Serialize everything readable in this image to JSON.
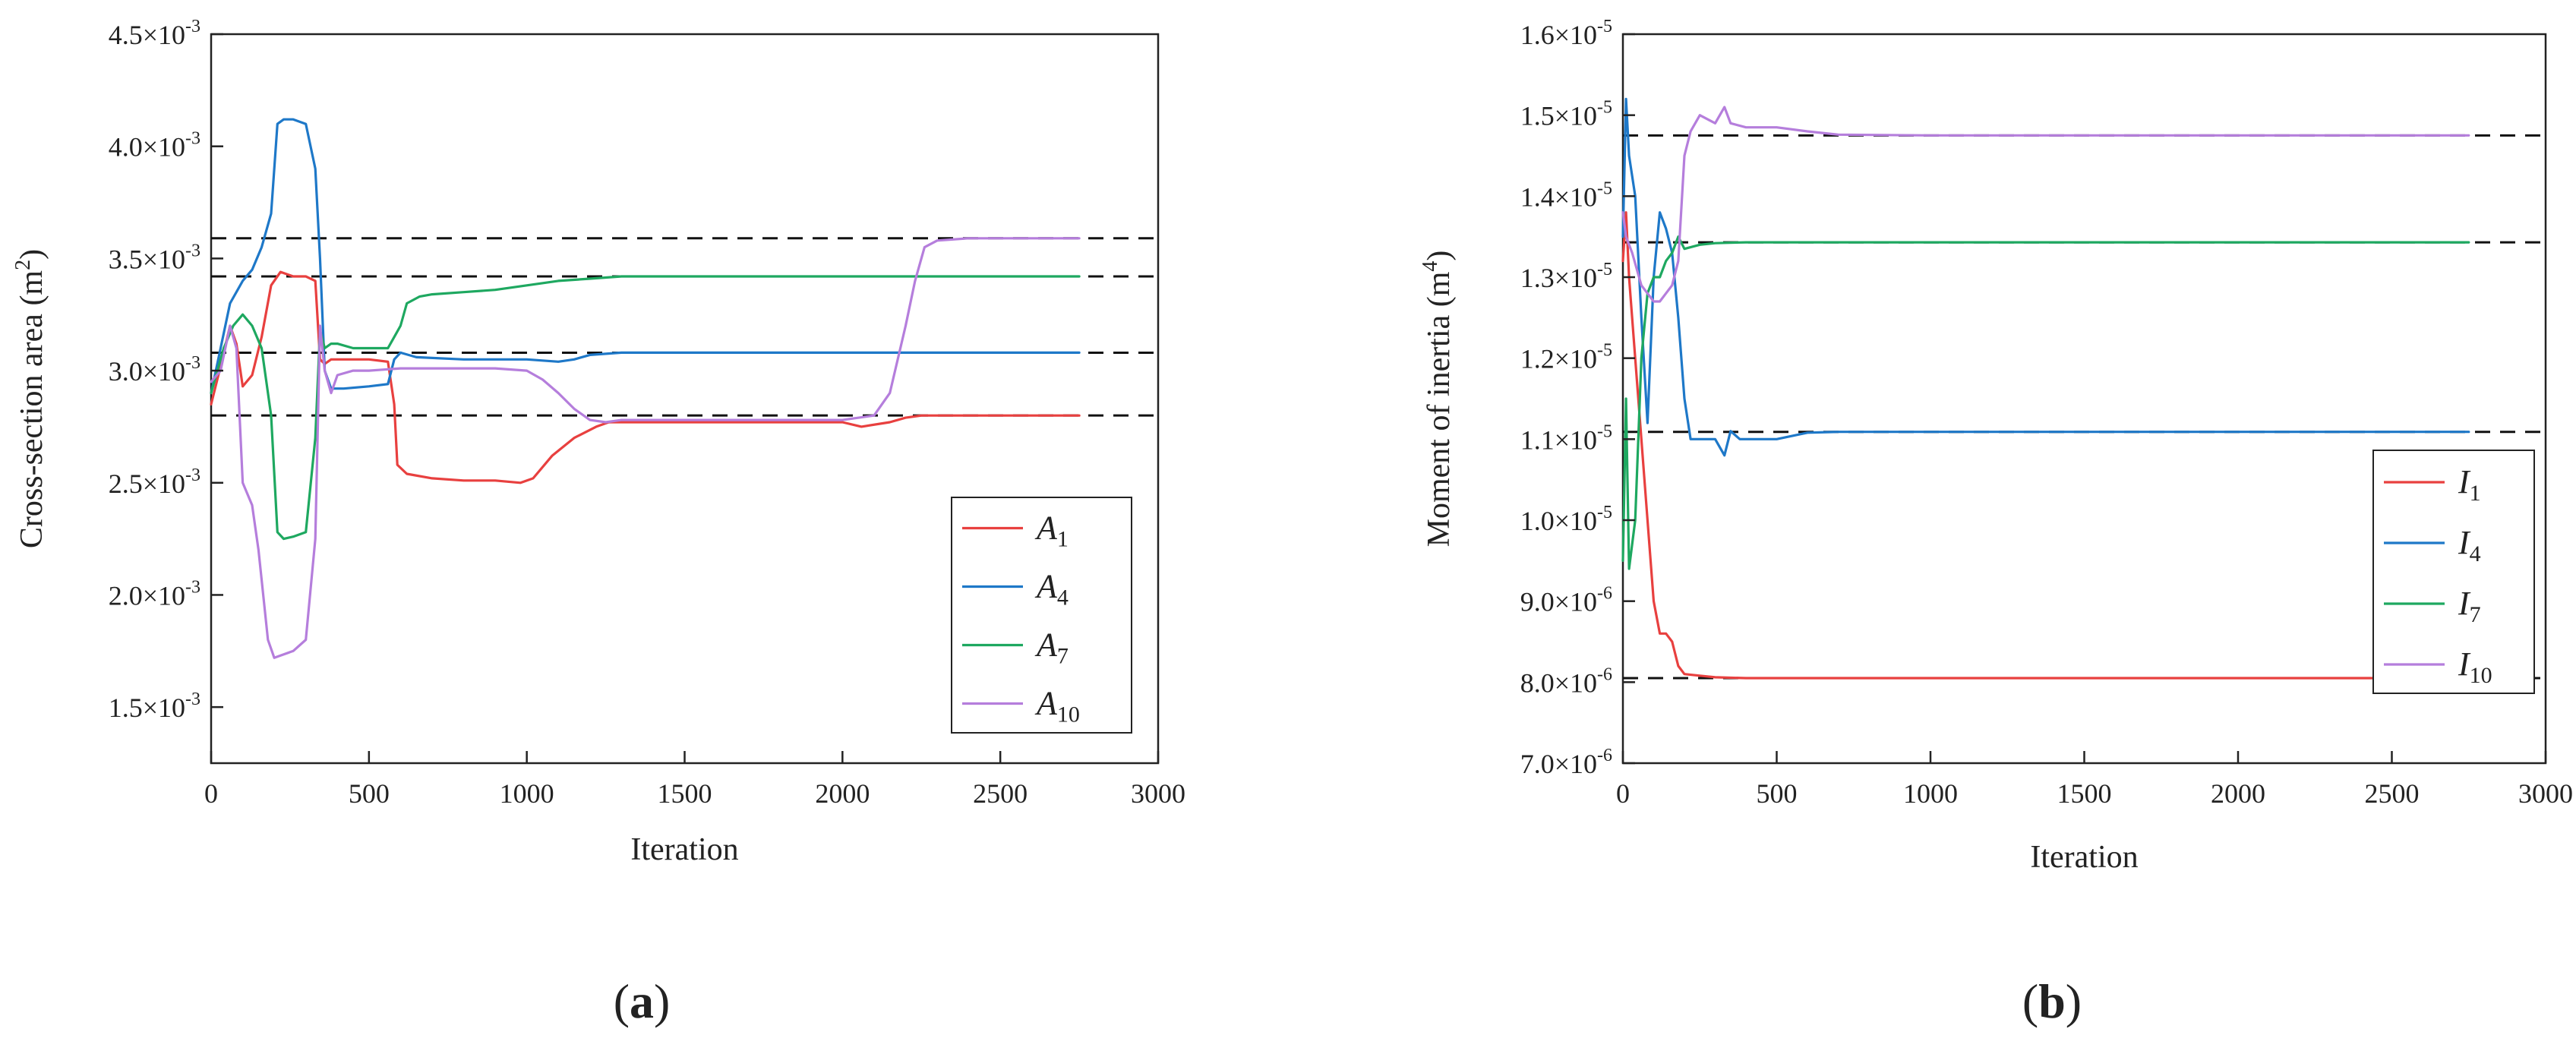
{
  "chart_data": [
    {
      "type": "line",
      "panel_label": "(a)",
      "panel_letter": "a",
      "xlabel": "Iteration",
      "ylabel": "Cross-section area (m",
      "ylabel_exp": "2",
      "xlim": [
        0,
        3000
      ],
      "ylim": [
        0.00125,
        0.0045
      ],
      "x_ticks": [
        0,
        500,
        1000,
        1500,
        2000,
        2500,
        3000
      ],
      "y_ticks": [
        {
          "value": 0.0015,
          "mant": "1.5×10",
          "exp": "-3"
        },
        {
          "value": 0.002,
          "mant": "2.0×10",
          "exp": "-3"
        },
        {
          "value": 0.0025,
          "mant": "2.5×10",
          "exp": "-3"
        },
        {
          "value": 0.003,
          "mant": "3.0×10",
          "exp": "-3"
        },
        {
          "value": 0.0035,
          "mant": "3.5×10",
          "exp": "-3"
        },
        {
          "value": 0.004,
          "mant": "4.0×10",
          "exp": "-3"
        },
        {
          "value": 0.0045,
          "mant": "4.5×10",
          "exp": "-3"
        }
      ],
      "reference_lines": [
        0.00359,
        0.00342,
        0.00308,
        0.0028
      ],
      "legend_position": "lower-right",
      "series": [
        {
          "name": "A",
          "sub": "1",
          "color": "#e8403f",
          "x": [
            0,
            30,
            60,
            80,
            100,
            130,
            160,
            190,
            220,
            260,
            300,
            330,
            345,
            360,
            380,
            420,
            500,
            560,
            580,
            590,
            620,
            700,
            800,
            900,
            980,
            1020,
            1080,
            1150,
            1220,
            1260,
            1400,
            1600,
            1800,
            2000,
            2060,
            2150,
            2200,
            2250,
            2300,
            2500,
            2750
          ],
          "y": [
            0.00285,
            0.00302,
            0.0032,
            0.00312,
            0.00293,
            0.00298,
            0.00315,
            0.00338,
            0.00344,
            0.00342,
            0.00342,
            0.0034,
            0.00305,
            0.00303,
            0.00305,
            0.00305,
            0.00305,
            0.00304,
            0.00285,
            0.00258,
            0.00254,
            0.00252,
            0.00251,
            0.00251,
            0.0025,
            0.00252,
            0.00262,
            0.0027,
            0.00275,
            0.00277,
            0.00277,
            0.00277,
            0.00277,
            0.00277,
            0.00275,
            0.00277,
            0.00279,
            0.0028,
            0.0028,
            0.0028,
            0.0028
          ]
        },
        {
          "name": "A",
          "sub": "4",
          "color": "#1e78c8",
          "x": [
            0,
            30,
            60,
            100,
            130,
            160,
            190,
            210,
            230,
            260,
            300,
            330,
            345,
            360,
            380,
            420,
            500,
            560,
            580,
            600,
            650,
            800,
            1000,
            1100,
            1150,
            1200,
            1300,
            1500,
            2000,
            2500,
            2750
          ],
          "y": [
            0.0029,
            0.0031,
            0.0033,
            0.0034,
            0.00345,
            0.00355,
            0.0037,
            0.0041,
            0.00412,
            0.00412,
            0.0041,
            0.0039,
            0.0035,
            0.003,
            0.00292,
            0.00292,
            0.00293,
            0.00294,
            0.00305,
            0.00308,
            0.00306,
            0.00305,
            0.00305,
            0.00304,
            0.00305,
            0.00307,
            0.00308,
            0.00308,
            0.00308,
            0.00308,
            0.00308
          ]
        },
        {
          "name": "A",
          "sub": "7",
          "color": "#1ea860",
          "x": [
            0,
            40,
            70,
            100,
            130,
            160,
            190,
            210,
            230,
            260,
            300,
            330,
            345,
            360,
            380,
            400,
            450,
            500,
            560,
            580,
            600,
            620,
            660,
            700,
            800,
            900,
            1000,
            1100,
            1200,
            1300,
            1500,
            2000,
            2500,
            2750
          ],
          "y": [
            0.0029,
            0.0031,
            0.0032,
            0.00325,
            0.0032,
            0.0031,
            0.0028,
            0.00228,
            0.00225,
            0.00226,
            0.00228,
            0.0027,
            0.00318,
            0.0031,
            0.00312,
            0.00312,
            0.0031,
            0.0031,
            0.0031,
            0.00315,
            0.0032,
            0.0033,
            0.00333,
            0.00334,
            0.00335,
            0.00336,
            0.00338,
            0.0034,
            0.00341,
            0.00342,
            0.00342,
            0.00342,
            0.00342,
            0.00342
          ]
        },
        {
          "name": "A",
          "sub": "10",
          "color": "#b57edc",
          "x": [
            0,
            30,
            60,
            80,
            100,
            130,
            150,
            180,
            200,
            220,
            260,
            300,
            330,
            345,
            360,
            380,
            400,
            450,
            500,
            600,
            700,
            800,
            900,
            1000,
            1050,
            1100,
            1150,
            1200,
            1250,
            1300,
            1500,
            1800,
            2000,
            2100,
            2150,
            2200,
            2230,
            2260,
            2300,
            2400,
            2500,
            2750
          ],
          "y": [
            0.00295,
            0.003,
            0.0032,
            0.0031,
            0.0025,
            0.0024,
            0.0022,
            0.0018,
            0.00172,
            0.00173,
            0.00175,
            0.0018,
            0.00225,
            0.0032,
            0.003,
            0.0029,
            0.00298,
            0.003,
            0.003,
            0.00301,
            0.00301,
            0.00301,
            0.00301,
            0.003,
            0.00296,
            0.0029,
            0.00283,
            0.00278,
            0.00277,
            0.00278,
            0.00278,
            0.00278,
            0.00278,
            0.0028,
            0.0029,
            0.0032,
            0.0034,
            0.00355,
            0.00358,
            0.00359,
            0.00359,
            0.00359
          ]
        }
      ]
    },
    {
      "type": "line",
      "panel_label": "(b)",
      "panel_letter": "b",
      "xlabel": "Iteration",
      "ylabel": "Moment of inertia (m",
      "ylabel_exp": "4",
      "xlim": [
        0,
        3000
      ],
      "ylim": [
        7e-06,
        1.6e-05
      ],
      "x_ticks": [
        0,
        500,
        1000,
        1500,
        2000,
        2500,
        3000
      ],
      "y_ticks": [
        {
          "value": 7e-06,
          "mant": "7.0×10",
          "exp": "-6"
        },
        {
          "value": 8e-06,
          "mant": "8.0×10",
          "exp": "-6"
        },
        {
          "value": 9e-06,
          "mant": "9.0×10",
          "exp": "-6"
        },
        {
          "value": 1e-05,
          "mant": "1.0×10",
          "exp": "-5"
        },
        {
          "value": 1.1e-05,
          "mant": "1.1×10",
          "exp": "-5"
        },
        {
          "value": 1.2e-05,
          "mant": "1.2×10",
          "exp": "-5"
        },
        {
          "value": 1.3e-05,
          "mant": "1.3×10",
          "exp": "-5"
        },
        {
          "value": 1.4e-05,
          "mant": "1.4×10",
          "exp": "-5"
        },
        {
          "value": 1.5e-05,
          "mant": "1.5×10",
          "exp": "-5"
        },
        {
          "value": 1.6e-05,
          "mant": "1.6×10",
          "exp": "-5"
        }
      ],
      "reference_lines": [
        1.475e-05,
        1.343e-05,
        1.109e-05,
        8.05e-06
      ],
      "legend_position": "right",
      "series": [
        {
          "name": "I",
          "sub": "1",
          "color": "#e8403f",
          "x": [
            0,
            10,
            20,
            40,
            60,
            80,
            100,
            120,
            140,
            160,
            180,
            200,
            250,
            300,
            400,
            500,
            1000,
            2000,
            2750
          ],
          "y": [
            1.32e-05,
            1.38e-05,
            1.3e-05,
            1.2e-05,
            1.1e-05,
            1e-05,
            9e-06,
            8.6e-06,
            8.6e-06,
            8.5e-06,
            8.2e-06,
            8.1e-06,
            8.08e-06,
            8.06e-06,
            8.05e-06,
            8.05e-06,
            8.05e-06,
            8.05e-06,
            8.05e-06
          ]
        },
        {
          "name": "I",
          "sub": "4",
          "color": "#1e78c8",
          "x": [
            0,
            10,
            20,
            40,
            60,
            80,
            100,
            120,
            140,
            160,
            180,
            200,
            220,
            250,
            300,
            330,
            350,
            380,
            400,
            500,
            600,
            700,
            1000,
            2000,
            2750
          ],
          "y": [
            1.35e-05,
            1.52e-05,
            1.45e-05,
            1.4e-05,
            1.25e-05,
            1.12e-05,
            1.3e-05,
            1.38e-05,
            1.36e-05,
            1.33e-05,
            1.25e-05,
            1.15e-05,
            1.1e-05,
            1.1e-05,
            1.1e-05,
            1.08e-05,
            1.11e-05,
            1.1e-05,
            1.1e-05,
            1.1e-05,
            1.108e-05,
            1.109e-05,
            1.109e-05,
            1.109e-05,
            1.109e-05
          ]
        },
        {
          "name": "I",
          "sub": "7",
          "color": "#1ea860",
          "x": [
            0,
            10,
            20,
            40,
            60,
            80,
            100,
            120,
            140,
            160,
            180,
            200,
            250,
            300,
            400,
            500,
            1000,
            2000,
            2750
          ],
          "y": [
            9.5e-06,
            1.15e-05,
            9.4e-06,
            1e-05,
            1.2e-05,
            1.28e-05,
            1.3e-05,
            1.3e-05,
            1.32e-05,
            1.33e-05,
            1.35e-05,
            1.335e-05,
            1.34e-05,
            1.342e-05,
            1.343e-05,
            1.343e-05,
            1.343e-05,
            1.343e-05,
            1.343e-05
          ]
        },
        {
          "name": "I",
          "sub": "10",
          "color": "#b57edc",
          "x": [
            0,
            10,
            30,
            60,
            100,
            120,
            140,
            160,
            180,
            200,
            220,
            250,
            300,
            330,
            350,
            400,
            500,
            600,
            700,
            1000,
            2000,
            2750
          ],
          "y": [
            1.38e-05,
            1.35e-05,
            1.33e-05,
            1.29e-05,
            1.27e-05,
            1.27e-05,
            1.28e-05,
            1.29e-05,
            1.32e-05,
            1.45e-05,
            1.48e-05,
            1.5e-05,
            1.49e-05,
            1.51e-05,
            1.49e-05,
            1.485e-05,
            1.485e-05,
            1.48e-05,
            1.476e-05,
            1.475e-05,
            1.475e-05,
            1.475e-05
          ]
        }
      ]
    }
  ]
}
